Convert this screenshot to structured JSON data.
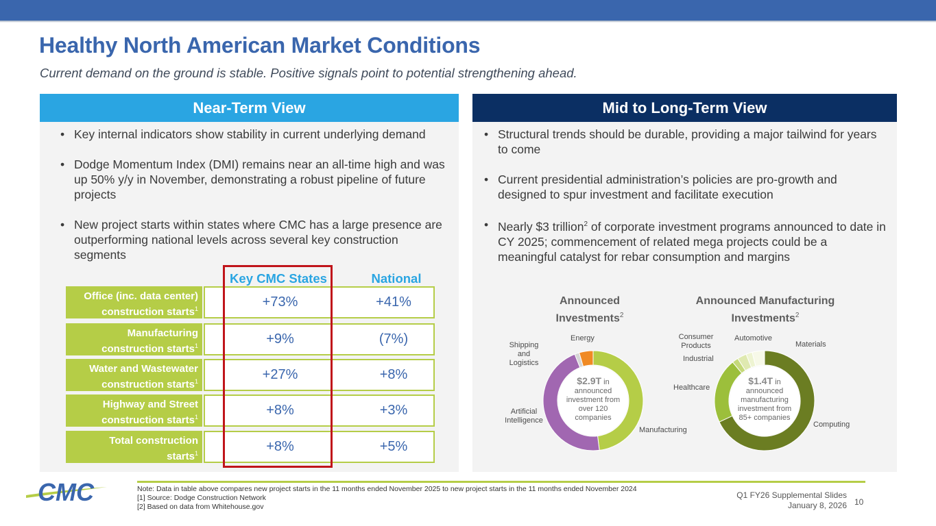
{
  "title": "Healthy North American Market Conditions",
  "subtitle": "Current demand on the ground is stable.  Positive signals point to potential strengthening ahead.",
  "near_term": {
    "heading": "Near-Term View",
    "bullets": [
      "Key internal indicators show stability in current underlying demand",
      "Dodge Momentum Index (DMI) remains near an all-time high and was up 50% y/y in November, demonstrating a robust pipeline of future projects",
      "New project starts within states where CMC has a large presence are outperforming national levels across several key construction segments"
    ]
  },
  "long_term": {
    "heading": "Mid to Long-Term View",
    "bullets": [
      "Structural trends should be durable, providing a major tailwind for years to come",
      "Current presidential administration’s policies are pro-growth and designed to spur investment and facilitate execution",
      "commencement of related mega projects could be a meaningful catalyst for rebar consumption and margins"
    ],
    "bullet3_pre": "Nearly $3 trillion",
    "bullet3_sup": "2",
    "bullet3_mid": " of corporate investment programs announced to date in CY 2025; "
  },
  "bullet_char": "•",
  "table": {
    "col_states": "Key CMC States",
    "col_national": "National",
    "sup": "1",
    "rows": [
      {
        "label_1": "Office (inc. data center)",
        "label_2": "construction starts",
        "states": "+73%",
        "national": "+41%"
      },
      {
        "label_1": "Manufacturing",
        "label_2": "construction starts",
        "states": "+9%",
        "national": "(7%)"
      },
      {
        "label_1": "Water and Wastewater",
        "label_2": "construction starts",
        "states": "+27%",
        "national": "+8%"
      },
      {
        "label_1": "Highway and Street",
        "label_2": "construction starts",
        "states": "+8%",
        "national": "+3%"
      },
      {
        "label_1": "Total construction",
        "label_2": "starts",
        "states": "+8%",
        "national": "+5%"
      }
    ]
  },
  "chart_data": [
    {
      "type": "pie",
      "title_1": "Announced",
      "title_2": "Investments",
      "title_sup": "2",
      "center_value": "$2.9T",
      "center_text_1": "in",
      "center_text_2": "announced",
      "center_text_3": "investment from",
      "center_text_4": "over 120",
      "center_text_5": "companies",
      "categories": [
        "Manufacturing",
        "Artificial Intelligence",
        "Shipping and Logistics",
        "Energy"
      ],
      "label_lines": {
        "shipping": [
          "Shipping",
          "and",
          "Logistics"
        ],
        "ai": [
          "Artificial",
          "Intelligence"
        ]
      },
      "values": [
        48,
        46,
        1.5,
        4.5
      ],
      "colors": [
        "#b5cd47",
        "#a167b1",
        "#d6d6d6",
        "#f08a24"
      ]
    },
    {
      "type": "pie",
      "title_1": "Announced Manufacturing",
      "title_2": "Investments",
      "title_sup": "2",
      "center_value": "$1.4T",
      "center_text_1": "in",
      "center_text_2": "announced",
      "center_text_3": "manufacturing",
      "center_text_4": "investment from",
      "center_text_5": "85+ companies",
      "categories": [
        "Computing",
        "Healthcare",
        "Industrial",
        "Consumer Products",
        "Automotive",
        "Materials"
      ],
      "label_lines": {
        "consumer": [
          "Consumer",
          "Products"
        ]
      },
      "values": [
        68,
        21,
        2,
        3,
        2,
        4
      ],
      "colors": [
        "#6b7d22",
        "#9cbf3b",
        "#c5d97a",
        "#dfe9b0",
        "#eef4d2",
        "#f7f9e8"
      ]
    }
  ],
  "footer": {
    "note": "Note: Data in table above compares new project starts in the 11 months ended November 2025 to new project starts in the 11 months ended November 2024",
    "src1": "[1] Source: Dodge Construction Network",
    "src2": "[2] Based on data from Whitehouse.gov",
    "deck": "Q1 FY26 Supplemental Slides",
    "date": "January 8, 2026",
    "page": "10"
  },
  "logo_text": "CMC",
  "colors": {
    "brand_blue": "#3a66ad",
    "light_blue": "#2aa5e2",
    "navy": "#0b2f63",
    "green": "#b5cd47",
    "red": "#c0141a"
  }
}
